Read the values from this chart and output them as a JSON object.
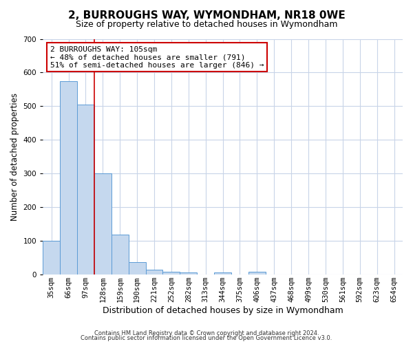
{
  "title": "2, BURROUGHS WAY, WYMONDHAM, NR18 0WE",
  "subtitle": "Size of property relative to detached houses in Wymondham",
  "xlabel": "Distribution of detached houses by size in Wymondham",
  "ylabel": "Number of detached properties",
  "bar_labels": [
    "35sqm",
    "66sqm",
    "97sqm",
    "128sqm",
    "159sqm",
    "190sqm",
    "221sqm",
    "252sqm",
    "282sqm",
    "313sqm",
    "344sqm",
    "375sqm",
    "406sqm",
    "437sqm",
    "468sqm",
    "499sqm",
    "530sqm",
    "561sqm",
    "592sqm",
    "623sqm",
    "654sqm"
  ],
  "bar_values": [
    100,
    575,
    505,
    300,
    118,
    37,
    14,
    8,
    5,
    0,
    5,
    0,
    8,
    0,
    0,
    0,
    0,
    0,
    0,
    0,
    0
  ],
  "bar_color": "#c5d8ee",
  "bar_edge_color": "#5b9bd5",
  "vline_x": 2.5,
  "vline_color": "#cc0000",
  "annotation_text": "2 BURROUGHS WAY: 105sqm\n← 48% of detached houses are smaller (791)\n51% of semi-detached houses are larger (846) →",
  "annotation_box_color": "#ffffff",
  "annotation_box_edge": "#cc0000",
  "ylim": [
    0,
    700
  ],
  "yticks": [
    0,
    100,
    200,
    300,
    400,
    500,
    600,
    700
  ],
  "footer1": "Contains HM Land Registry data © Crown copyright and database right 2024.",
  "footer2": "Contains public sector information licensed under the Open Government Licence v3.0.",
  "background_color": "#ffffff",
  "grid_color": "#c8d4e8",
  "title_fontsize": 11,
  "subtitle_fontsize": 9,
  "tick_fontsize": 7.5,
  "ylabel_fontsize": 8.5,
  "xlabel_fontsize": 9,
  "annotation_fontsize": 8,
  "footer_fontsize": 6
}
